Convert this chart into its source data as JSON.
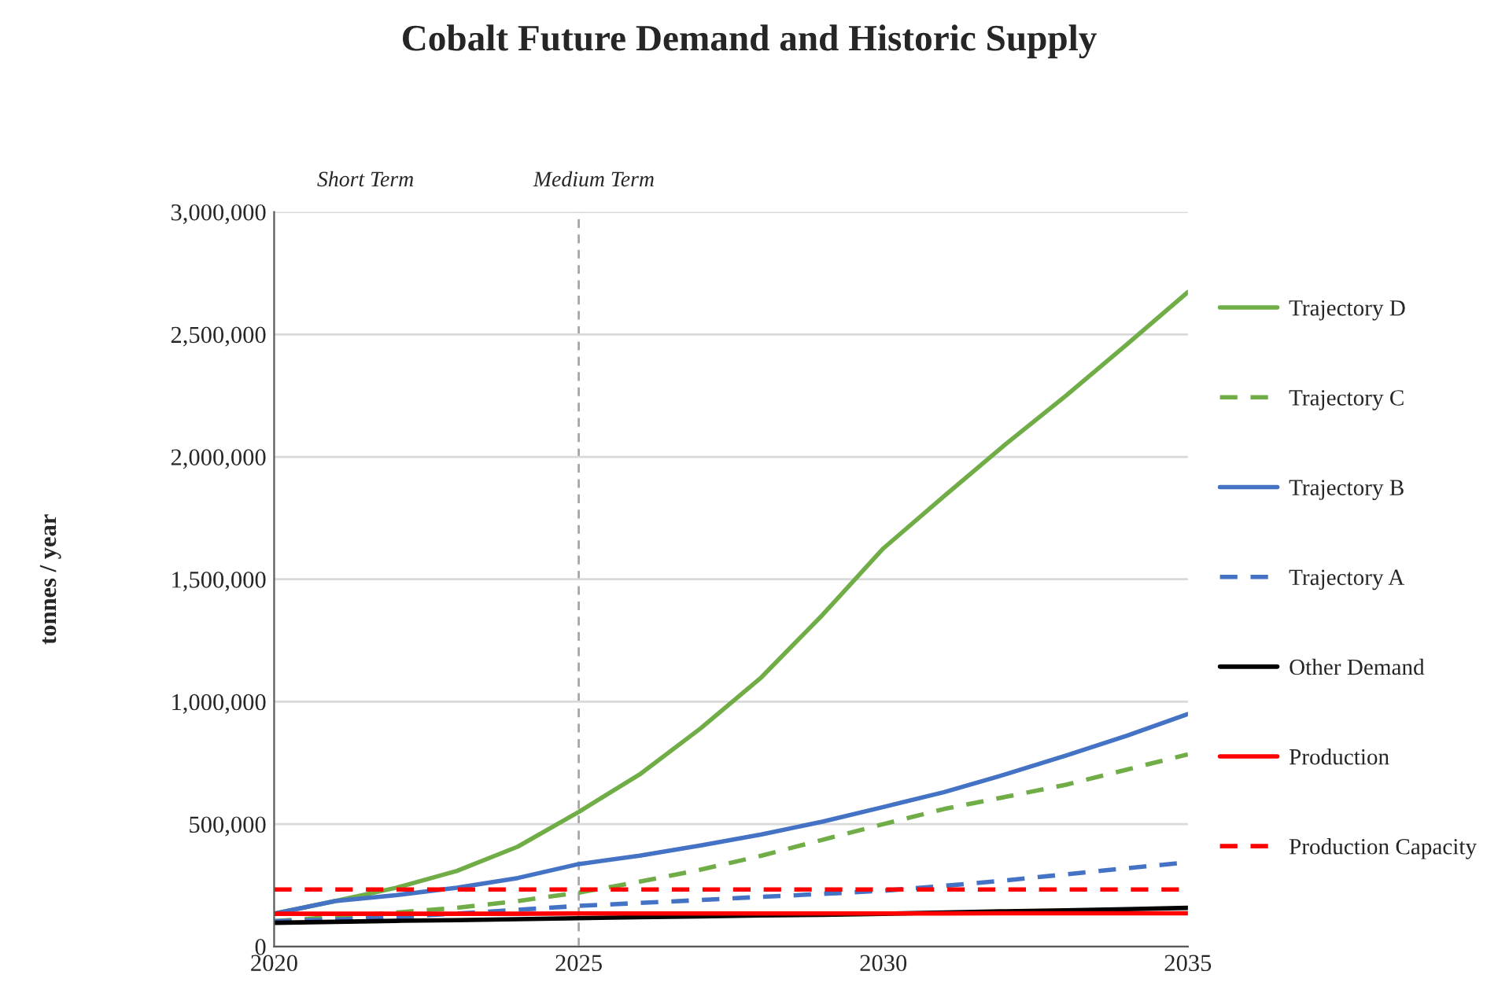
{
  "chart_data": {
    "type": "line",
    "title": "Cobalt Future Demand and Historic Supply",
    "ylabel": "tonnes / year",
    "x": [
      2020,
      2021,
      2022,
      2023,
      2024,
      2025,
      2026,
      2027,
      2028,
      2029,
      2030,
      2031,
      2032,
      2033,
      2034,
      2035
    ],
    "xlim": [
      2020,
      2035
    ],
    "xticks": [
      2020,
      2025,
      2030,
      2035
    ],
    "ylim": [
      0,
      3000000
    ],
    "yticks": [
      {
        "value": 0,
        "label": "0"
      },
      {
        "value": 500000,
        "label": "500,000"
      },
      {
        "value": 1000000,
        "label": "1,000,000"
      },
      {
        "value": 1500000,
        "label": "1,500,000"
      },
      {
        "value": 2000000,
        "label": "2,000,000"
      },
      {
        "value": 2500000,
        "label": "2,500,000"
      },
      {
        "value": 3000000,
        "label": "3,000,000"
      }
    ],
    "grid": "y",
    "legend": "right",
    "marker": "none",
    "annotations": [
      "Short Term",
      "Medium Term"
    ],
    "ref_lines": [
      {
        "axis": "x",
        "value": 2025,
        "label": null,
        "color": "#a6a6a6",
        "line_style": "dashed"
      }
    ],
    "series": [
      {
        "name": "Trajectory D",
        "color": "#70ad47",
        "line_style": "solid",
        "values": [
          134000,
          186000,
          240000,
          309000,
          408000,
          550000,
          703000,
          891000,
          1100000,
          1354000,
          1626000,
          1840000,
          2050000,
          2250000,
          2460000,
          2673000
        ]
      },
      {
        "name": "Trajectory C",
        "color": "#70ad47",
        "line_style": "dashed",
        "values": [
          104000,
          121000,
          139000,
          158000,
          186000,
          220000,
          265000,
          314000,
          371000,
          436000,
          500000,
          562000,
          611000,
          661000,
          723000,
          785000
        ]
      },
      {
        "name": "Trajectory B",
        "color": "#4472c4",
        "line_style": "solid",
        "values": [
          134000,
          186000,
          210000,
          240000,
          280000,
          337000,
          371000,
          413000,
          458000,
          510000,
          570000,
          631000,
          703000,
          780000,
          861000,
          950000
        ]
      },
      {
        "name": "Trajectory A",
        "color": "#4472c4",
        "line_style": "dashed",
        "values": [
          104000,
          110000,
          120000,
          135000,
          150000,
          166000,
          178000,
          190000,
          203000,
          215000,
          228000,
          248000,
          270000,
          295000,
          320000,
          344000
        ]
      },
      {
        "name": "Other Demand",
        "color": "#000000",
        "line_style": "solid",
        "values": [
          97000,
          101000,
          105000,
          108000,
          112000,
          116000,
          120000,
          123000,
          127000,
          130000,
          134000,
          139000,
          144000,
          148000,
          153000,
          158000
        ]
      },
      {
        "name": "Production",
        "color": "#ff0000",
        "line_style": "solid",
        "values": [
          134000,
          134000,
          134000,
          134000,
          134000,
          135000,
          135000,
          135000,
          135000,
          135000,
          135000,
          135000,
          136000,
          136000,
          136000,
          136000
        ]
      },
      {
        "name": "Production Capacity",
        "color": "#ff0000",
        "line_style": "dashed",
        "values": [
          233000,
          233000,
          233000,
          233000,
          233000,
          233000,
          233000,
          233000,
          233000,
          233000,
          233000,
          233000,
          233000,
          233000,
          233000,
          233000
        ]
      }
    ]
  }
}
